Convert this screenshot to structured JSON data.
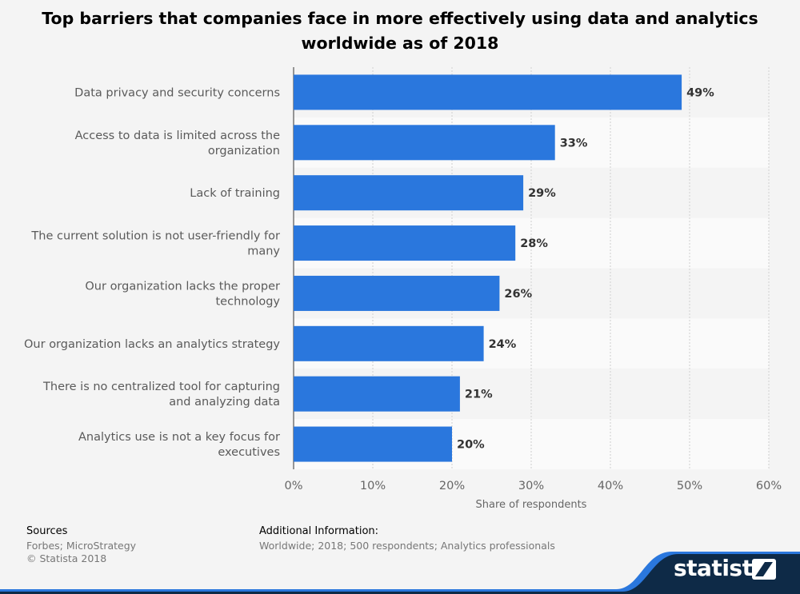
{
  "chart_data": {
    "type": "bar",
    "orientation": "horizontal",
    "title_line1": "Top barriers that companies face in more effectively using data and analytics",
    "title_line2": "worldwide as of 2018",
    "categories": [
      [
        "Data privacy and security concerns"
      ],
      [
        "Access to data is limited across the",
        "organization"
      ],
      [
        "Lack of training"
      ],
      [
        "The current solution is not user-friendly for",
        "many"
      ],
      [
        "Our organization lacks the proper",
        "technology"
      ],
      [
        "Our organization lacks an analytics strategy"
      ],
      [
        "There is no centralized tool for capturing",
        "and analyzing data"
      ],
      [
        "Analytics use is not a key focus for",
        "executives"
      ]
    ],
    "values": [
      49,
      33,
      29,
      28,
      26,
      24,
      21,
      20
    ],
    "value_labels": [
      "49%",
      "33%",
      "29%",
      "28%",
      "26%",
      "24%",
      "21%",
      "20%"
    ],
    "xlabel": "Share of respondents",
    "xlim": [
      0,
      60
    ],
    "xticks": [
      0,
      10,
      20,
      30,
      40,
      50,
      60
    ],
    "xtick_labels": [
      "0%",
      "10%",
      "20%",
      "30%",
      "40%",
      "50%",
      "60%"
    ],
    "bar_color": "#2a77dd",
    "grid": true
  },
  "footer": {
    "sources_heading": "Sources",
    "sources_line1": "Forbes; MicroStrategy",
    "sources_line2": "© Statista 2018",
    "info_heading": "Additional Information:",
    "info_text": "Worldwide; 2018; 500 respondents; Analytics professionals"
  },
  "brand": {
    "name": "statista",
    "colors": {
      "dark": "#0e2a47",
      "accent": "#2a77dd"
    }
  }
}
